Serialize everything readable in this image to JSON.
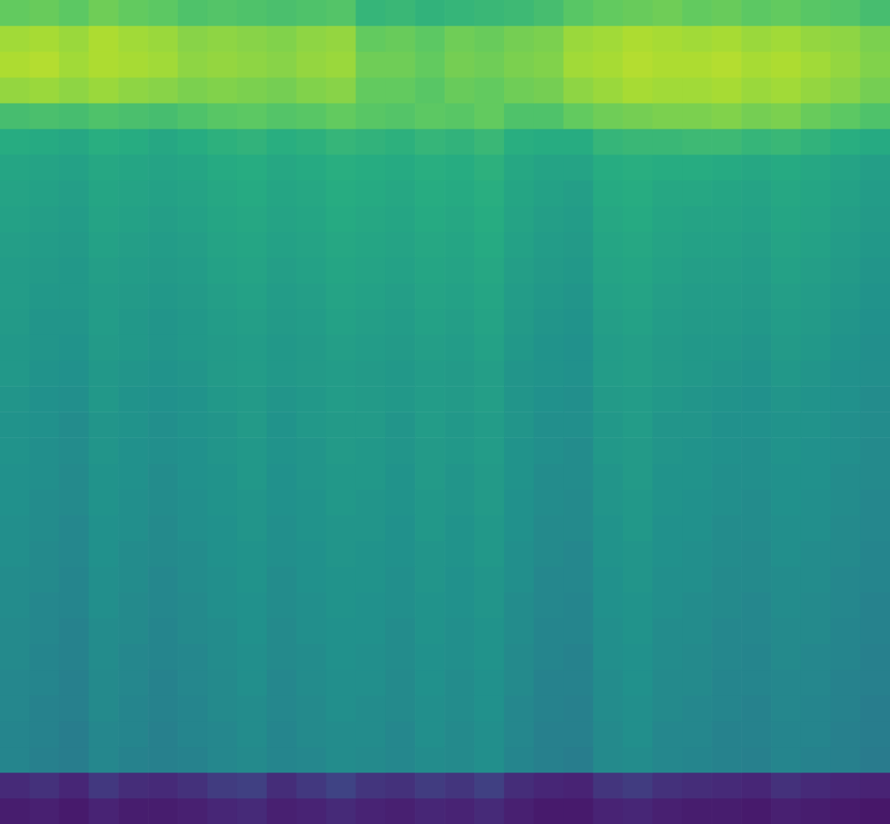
{
  "chart_data": {
    "type": "heatmap",
    "tick_labels": false,
    "grid": false,
    "zlim": [
      0,
      100
    ],
    "cells": [
      [
        76,
        77,
        75,
        78,
        76,
        75,
        72,
        73,
        72,
        71,
        72,
        73,
        66,
        67,
        65,
        66,
        67,
        68,
        70,
        74,
        76,
        77,
        78,
        76,
        77,
        75,
        76,
        74,
        73,
        70
      ],
      [
        86,
        87,
        85,
        88,
        86,
        85,
        82,
        83,
        82,
        81,
        83,
        84,
        76,
        77,
        75,
        78,
        77,
        79,
        80,
        85,
        86,
        88,
        87,
        86,
        87,
        85,
        86,
        84,
        83,
        80
      ],
      [
        88,
        89,
        86,
        88,
        87,
        86,
        83,
        84,
        83,
        82,
        84,
        85,
        78,
        78,
        76,
        79,
        78,
        80,
        81,
        86,
        87,
        89,
        88,
        88,
        89,
        87,
        88,
        86,
        84,
        81
      ],
      [
        84,
        85,
        83,
        85,
        83,
        82,
        80,
        81,
        80,
        79,
        81,
        82,
        76,
        76,
        74,
        77,
        76,
        78,
        79,
        83,
        85,
        87,
        86,
        86,
        87,
        85,
        86,
        84,
        82,
        79
      ],
      [
        70,
        71,
        70,
        72,
        71,
        70,
        72,
        74,
        75,
        73,
        74,
        76,
        74,
        73,
        75,
        74,
        76,
        72,
        72,
        76,
        78,
        79,
        80,
        80,
        81,
        79,
        80,
        77,
        75,
        72
      ],
      [
        62,
        61,
        60,
        63,
        62,
        60,
        62,
        64,
        65,
        63,
        64,
        66,
        65,
        64,
        66,
        65,
        67,
        63,
        62,
        62,
        66,
        67,
        67,
        68,
        68,
        66,
        67,
        65,
        63,
        61
      ],
      [
        59,
        58,
        57,
        60,
        59,
        58,
        59,
        61,
        62,
        60,
        61,
        63,
        62,
        61,
        63,
        62,
        64,
        60,
        58,
        58,
        62,
        63,
        62,
        62,
        61,
        60,
        61,
        60,
        58,
        56
      ],
      [
        58,
        57,
        56,
        59,
        58,
        57,
        58,
        60,
        61,
        59,
        60,
        62,
        61,
        60,
        62,
        61,
        63,
        59,
        57,
        56,
        61,
        62,
        60,
        60,
        59,
        58,
        60,
        59,
        57,
        55
      ],
      [
        57,
        56,
        55,
        58,
        57,
        56,
        57,
        59,
        60,
        58,
        59,
        61,
        60,
        59,
        61,
        60,
        62,
        58,
        56,
        55,
        60,
        61,
        59,
        58,
        58,
        57,
        59,
        58,
        56,
        54
      ],
      [
        56,
        55,
        54,
        57,
        56,
        55,
        56,
        58,
        59,
        57,
        58,
        60,
        59,
        58,
        60,
        59,
        61,
        57,
        55,
        54,
        59,
        60,
        58,
        57,
        57,
        56,
        58,
        57,
        55,
        53
      ],
      [
        55,
        54,
        53,
        56,
        55,
        54,
        55,
        57,
        58,
        56,
        57,
        59,
        58,
        57,
        59,
        58,
        60,
        56,
        54,
        53,
        58,
        59,
        57,
        56,
        56,
        55,
        57,
        56,
        54,
        52
      ],
      [
        55,
        53,
        53,
        55,
        54,
        53,
        54,
        56,
        57,
        55,
        56,
        58,
        57,
        56,
        58,
        57,
        59,
        55,
        53,
        52,
        57,
        58,
        56,
        55,
        55,
        54,
        56,
        55,
        53,
        51
      ],
      [
        54,
        52,
        52,
        55,
        53,
        52,
        53,
        55,
        56,
        54,
        55,
        57,
        56,
        55,
        57,
        56,
        58,
        54,
        52,
        51,
        56,
        57,
        55,
        54,
        54,
        53,
        55,
        54,
        52,
        50
      ],
      [
        53,
        52,
        51,
        54,
        53,
        52,
        53,
        54,
        55,
        53,
        54,
        56,
        55,
        54,
        56,
        55,
        57,
        53,
        51,
        50,
        55,
        56,
        54,
        53,
        53,
        52,
        54,
        53,
        51,
        49
      ],
      [
        53,
        51,
        50,
        53,
        52,
        51,
        52,
        54,
        55,
        53,
        54,
        55,
        54,
        53,
        55,
        54,
        56,
        52,
        51,
        50,
        55,
        56,
        54,
        53,
        52,
        51,
        53,
        52,
        50,
        49
      ],
      [
        52,
        50,
        49,
        53,
        51,
        50,
        51,
        53,
        54,
        52,
        53,
        55,
        54,
        53,
        55,
        54,
        56,
        52,
        50,
        49,
        54,
        55,
        53,
        52,
        51,
        50,
        52,
        51,
        50,
        48
      ],
      [
        51,
        50,
        48,
        52,
        51,
        49,
        51,
        52,
        54,
        51,
        53,
        54,
        54,
        52,
        55,
        53,
        55,
        52,
        49,
        49,
        53,
        55,
        52,
        52,
        50,
        50,
        51,
        51,
        49,
        48
      ],
      [
        51,
        49,
        48,
        52,
        50,
        49,
        50,
        52,
        53,
        51,
        52,
        54,
        53,
        52,
        54,
        53,
        55,
        51,
        49,
        48,
        53,
        54,
        52,
        51,
        50,
        49,
        51,
        50,
        49,
        47
      ],
      [
        50,
        49,
        47,
        51,
        50,
        48,
        50,
        51,
        53,
        50,
        52,
        53,
        53,
        51,
        54,
        52,
        54,
        51,
        48,
        48,
        52,
        54,
        51,
        51,
        49,
        49,
        50,
        50,
        48,
        47
      ],
      [
        50,
        48,
        47,
        51,
        49,
        48,
        49,
        51,
        52,
        50,
        51,
        53,
        52,
        51,
        53,
        52,
        54,
        50,
        48,
        47,
        52,
        53,
        51,
        50,
        49,
        48,
        50,
        49,
        48,
        46
      ],
      [
        49,
        48,
        46,
        50,
        49,
        47,
        49,
        50,
        52,
        49,
        51,
        52,
        52,
        50,
        53,
        51,
        53,
        50,
        47,
        47,
        51,
        53,
        50,
        50,
        48,
        48,
        49,
        49,
        47,
        46
      ],
      [
        49,
        47,
        46,
        50,
        48,
        47,
        48,
        50,
        51,
        49,
        50,
        52,
        51,
        50,
        52,
        51,
        53,
        49,
        47,
        46,
        51,
        52,
        50,
        49,
        48,
        47,
        49,
        48,
        47,
        45
      ],
      [
        48,
        47,
        45,
        49,
        48,
        46,
        48,
        49,
        51,
        48,
        50,
        51,
        51,
        49,
        52,
        50,
        52,
        49,
        46,
        46,
        50,
        52,
        49,
        49,
        47,
        47,
        48,
        48,
        46,
        45
      ],
      [
        48,
        46,
        45,
        49,
        47,
        46,
        47,
        49,
        50,
        48,
        49,
        51,
        50,
        49,
        51,
        50,
        52,
        48,
        46,
        45,
        50,
        51,
        49,
        48,
        47,
        46,
        48,
        47,
        46,
        44
      ],
      [
        47,
        46,
        44,
        48,
        47,
        45,
        47,
        48,
        50,
        47,
        49,
        50,
        50,
        48,
        51,
        49,
        51,
        48,
        45,
        45,
        49,
        51,
        48,
        48,
        46,
        46,
        47,
        47,
        45,
        44
      ],
      [
        47,
        45,
        44,
        48,
        46,
        45,
        46,
        48,
        49,
        47,
        48,
        50,
        49,
        48,
        50,
        49,
        51,
        47,
        45,
        44,
        49,
        50,
        48,
        47,
        46,
        45,
        47,
        46,
        45,
        43
      ],
      [
        46,
        45,
        43,
        47,
        46,
        44,
        46,
        47,
        49,
        46,
        48,
        49,
        49,
        47,
        50,
        48,
        50,
        47,
        44,
        44,
        48,
        50,
        47,
        47,
        45,
        45,
        46,
        46,
        44,
        43
      ],
      [
        46,
        44,
        43,
        47,
        45,
        44,
        45,
        47,
        48,
        46,
        47,
        49,
        48,
        47,
        49,
        48,
        50,
        46,
        44,
        43,
        48,
        49,
        47,
        46,
        45,
        44,
        46,
        45,
        44,
        42
      ],
      [
        45,
        44,
        42,
        46,
        45,
        43,
        45,
        46,
        48,
        45,
        47,
        48,
        48,
        46,
        49,
        47,
        49,
        46,
        43,
        43,
        47,
        49,
        46,
        46,
        44,
        44,
        45,
        45,
        43,
        42
      ],
      [
        45,
        43,
        42,
        46,
        44,
        43,
        44,
        46,
        47,
        45,
        46,
        48,
        47,
        46,
        48,
        47,
        49,
        45,
        43,
        42,
        47,
        48,
        46,
        45,
        44,
        43,
        45,
        44,
        43,
        41
      ],
      [
        14,
        16,
        13,
        18,
        15,
        14,
        16,
        19,
        20,
        15,
        18,
        21,
        17,
        16,
        19,
        17,
        20,
        15,
        13,
        12,
        17,
        19,
        16,
        15,
        14,
        13,
        16,
        14,
        13,
        12
      ],
      [
        10,
        11,
        9,
        12,
        10,
        10,
        11,
        13,
        14,
        11,
        12,
        14,
        12,
        11,
        13,
        12,
        14,
        11,
        9,
        9,
        12,
        13,
        11,
        10,
        10,
        9,
        11,
        10,
        9,
        8
      ]
    ]
  }
}
